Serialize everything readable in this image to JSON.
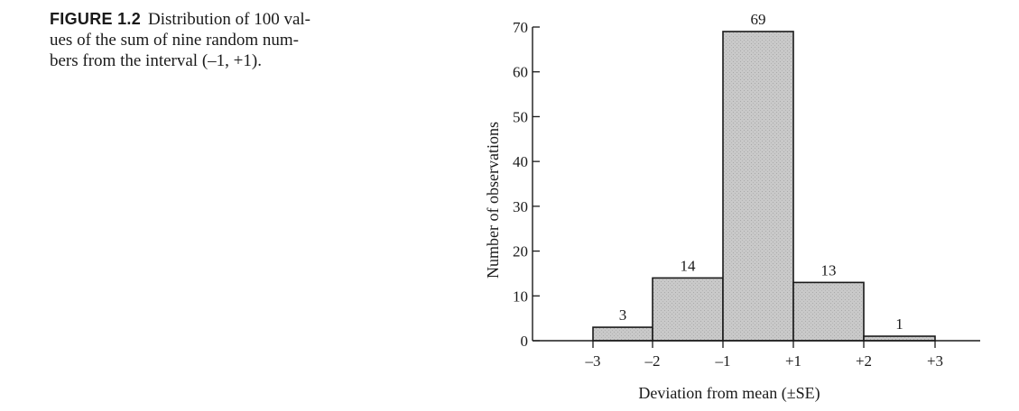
{
  "caption": {
    "label": "FIGURE 1.2",
    "lines": [
      "Distribution of 100 val-",
      "ues of the sum of nine random num-",
      "bers from the interval (–1, +1)."
    ]
  },
  "chart_data": {
    "type": "bar",
    "histogram": true,
    "bins": [
      {
        "from": -3,
        "to": -2,
        "value": 3
      },
      {
        "from": -2,
        "to": -1,
        "value": 14
      },
      {
        "from": -1,
        "to": 1,
        "value": 69
      },
      {
        "from": 1,
        "to": 2,
        "value": 13
      },
      {
        "from": 2,
        "to": 3,
        "value": 1
      }
    ],
    "x_ticks": [
      {
        "value": -3,
        "label": "–3"
      },
      {
        "value": -2,
        "label": "–2"
      },
      {
        "value": -1,
        "label": "–1"
      },
      {
        "value": 1,
        "label": "+1"
      },
      {
        "value": 2,
        "label": "+2"
      },
      {
        "value": 3,
        "label": "+3"
      }
    ],
    "y_ticks": [
      0,
      10,
      20,
      30,
      40,
      50,
      60,
      70
    ],
    "xlabel": "Deviation from mean (±SE)",
    "ylabel": "Number of observations",
    "ylim": [
      0,
      70
    ],
    "grid": false,
    "bar_color": "#c4c4c4",
    "bar_edge_color": "#1a1a1a"
  }
}
